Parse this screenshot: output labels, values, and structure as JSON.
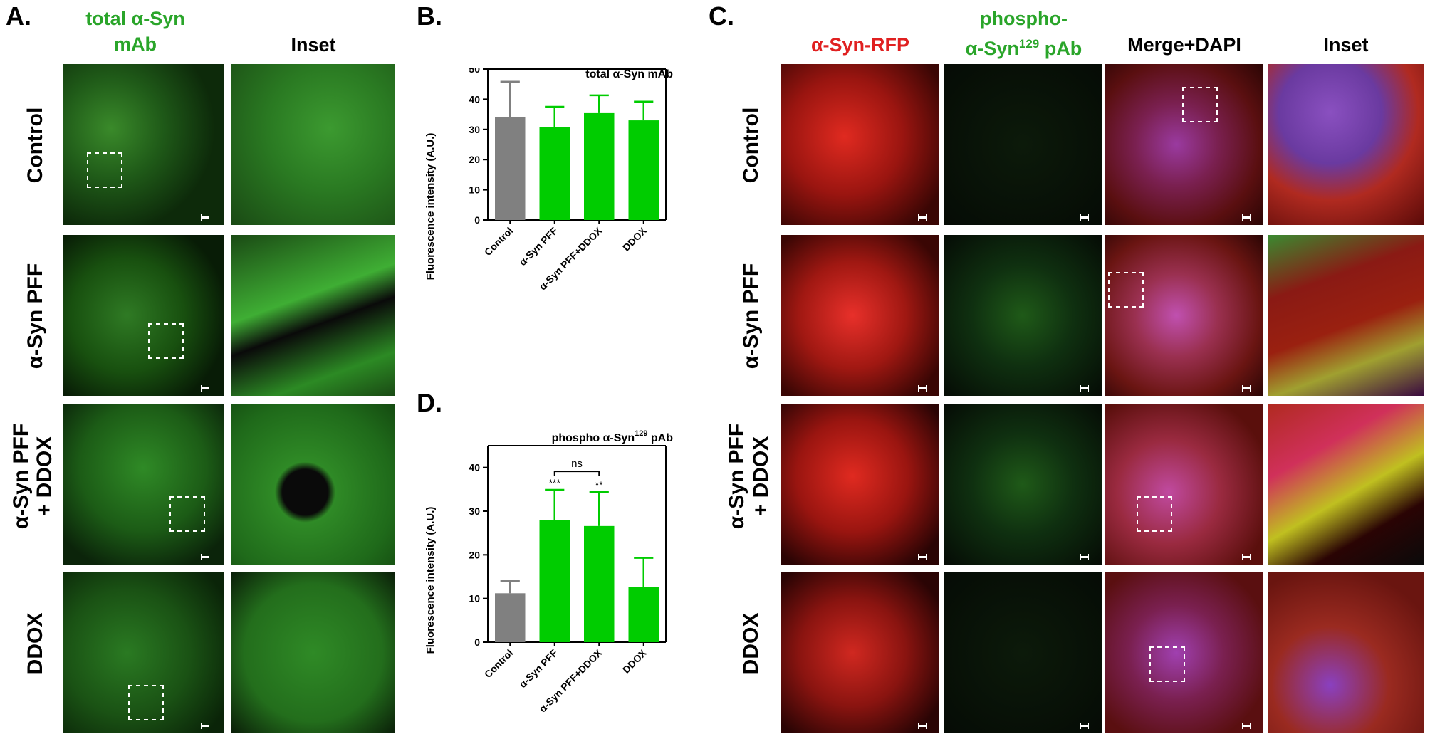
{
  "panels": {
    "a": {
      "letter": "A.",
      "col1": "total α-Syn mAb",
      "col2": "Inset"
    },
    "b": {
      "letter": "B."
    },
    "c": {
      "letter": "C.",
      "col1": "α-Syn-RFP",
      "col2_line1": "phospho-",
      "col2_line2": "α-Syn",
      "col2_sup": "129",
      "col2_tail": " pAb",
      "col3": "Merge+DAPI",
      "col4": "Inset"
    },
    "d": {
      "letter": "D."
    }
  },
  "rows": [
    "Control",
    "α-Syn PFF",
    "α-Syn PFF",
    "+ DDOX",
    "DDOX"
  ],
  "colors": {
    "green_text": "#2aa52a",
    "red_text": "#e02020",
    "bar_gray": "#808080",
    "bar_green": "#00cc00"
  },
  "chart_data": [
    {
      "type": "bar",
      "title": "total α-Syn mAb",
      "ylabel": "Fluorescence intensity (A.U.)",
      "categories": [
        "Control",
        "α-Syn PFF",
        "α-Syn PFF+DDOX",
        "DDOX"
      ],
      "values": [
        34.2,
        30.7,
        35.4,
        33.0
      ],
      "errors": [
        11.6,
        6.8,
        5.9,
        6.2
      ],
      "ylim": [
        0,
        50
      ],
      "yticks": [
        0,
        10,
        20,
        30,
        40,
        50
      ],
      "bar_colors": [
        "#808080",
        "#00cc00",
        "#00cc00",
        "#00cc00"
      ]
    },
    {
      "type": "bar",
      "title_main": "phospho α-Syn",
      "title_sup": "129",
      "title_tail": " pAb",
      "ylabel": "Fluorescence intensity (A.U.)",
      "categories": [
        "Control",
        "α-Syn PFF",
        "α-Syn PFF+DDOX",
        "DDOX"
      ],
      "values": [
        11.2,
        27.9,
        26.6,
        12.7
      ],
      "errors": [
        2.8,
        7.0,
        7.8,
        6.6
      ],
      "ylim": [
        0,
        45
      ],
      "yticks": [
        0,
        10,
        20,
        30,
        40
      ],
      "bar_colors": [
        "#808080",
        "#00cc00",
        "#00cc00",
        "#00cc00"
      ],
      "significance": [
        "",
        "***",
        "**",
        ""
      ],
      "bracket_label": "ns"
    }
  ]
}
